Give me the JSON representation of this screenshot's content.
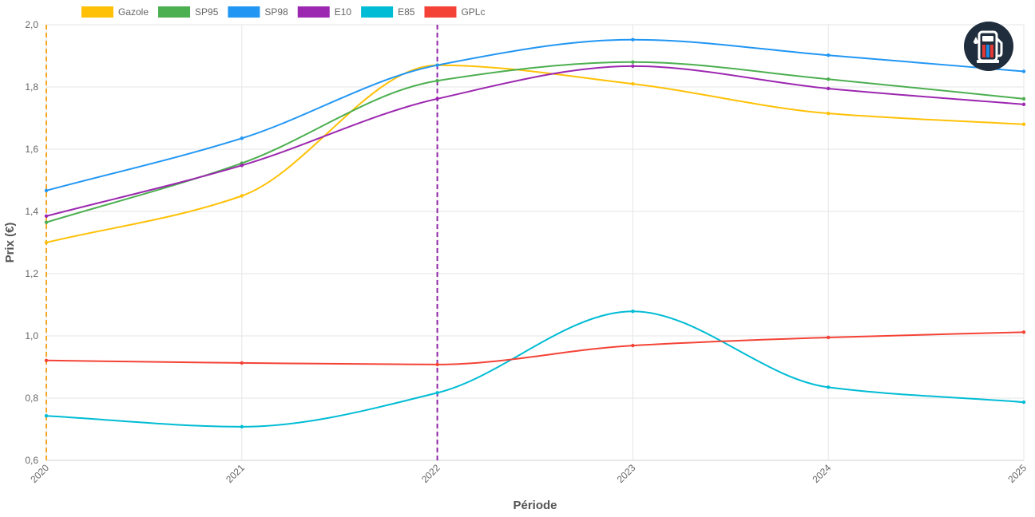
{
  "chart_data": {
    "type": "line",
    "title": "",
    "xlabel": "Période",
    "ylabel": "Prix (€)",
    "categories": [
      "2020",
      "2021",
      "2022",
      "2023",
      "2024",
      "2025"
    ],
    "ylim": [
      0.6,
      2.0
    ],
    "yticks": [
      "0,6",
      "0,8",
      "1,0",
      "1,2",
      "1,4",
      "1,6",
      "1,8",
      "2,0"
    ],
    "grid": true,
    "legend_position": "top-left",
    "series": [
      {
        "name": "Gazole",
        "color": "#FFC107",
        "values": [
          1.3,
          1.45,
          1.87,
          1.81,
          1.715,
          1.68
        ]
      },
      {
        "name": "SP95",
        "color": "#4CAF50",
        "values": [
          1.365,
          1.555,
          1.82,
          1.88,
          1.825,
          1.762
        ]
      },
      {
        "name": "SP98",
        "color": "#2196F3",
        "values": [
          1.467,
          1.635,
          1.87,
          1.952,
          1.902,
          1.85
        ]
      },
      {
        "name": "E10",
        "color": "#9C27B0",
        "values": [
          1.385,
          1.548,
          1.762,
          1.867,
          1.795,
          1.744
        ]
      },
      {
        "name": "E85",
        "color": "#00BCD4",
        "values": [
          0.743,
          0.708,
          0.817,
          1.079,
          0.835,
          0.787
        ]
      },
      {
        "name": "GPLc",
        "color": "#F44336",
        "values": [
          0.921,
          0.913,
          0.908,
          0.969,
          0.995,
          1.012
        ]
      }
    ],
    "vertical_markers": [
      {
        "x": "2020",
        "color": "#F5A623",
        "style": "dashed"
      },
      {
        "x": "2022",
        "color": "#8E24AA",
        "style": "dashed"
      }
    ]
  },
  "logo": {
    "icon": "fuel-pump-icon",
    "bg": "#1F2D3D"
  }
}
